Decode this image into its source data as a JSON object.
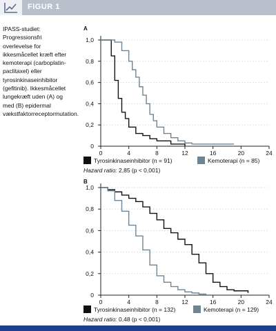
{
  "figure_label": "FIGUR 1",
  "caption": "IPASS-studiet: Progressionsfri overlevelse for ikkesmåcellet kræft efter kemoterapi (carboplatin-paclitaxel) eller tyrosinkinaseinhibitor (gefitinib). Ikkesmåcellet lungekræft uden (A) og med (B) epidermal vækstfaktorreceptormutation.",
  "colors": {
    "header": "#b9bfcb",
    "footer": "#1b3f8c",
    "series_tki": "#111111",
    "series_chemo": "#6f8492"
  },
  "icons": {
    "header_icon": "line-chart-icon"
  },
  "chart_data": [
    {
      "type": "line",
      "panel": "A",
      "xlim": [
        0,
        24
      ],
      "ylim": [
        0,
        1.0
      ],
      "xticks": [
        "0",
        "4",
        "8",
        "12",
        "16",
        "20",
        "24"
      ],
      "yticks": [
        "0",
        "0,2",
        "0,4",
        "0,6",
        "0,8",
        "1,0"
      ],
      "series": [
        {
          "name": "Tyrosinkinaseinhibitor (n = 91)",
          "color": "#111111",
          "x": [
            0,
            1,
            1.5,
            2,
            2.5,
            3,
            3.5,
            4,
            5,
            6,
            7,
            8,
            10,
            12
          ],
          "y": [
            1.0,
            1.0,
            0.85,
            0.62,
            0.45,
            0.32,
            0.26,
            0.18,
            0.12,
            0.1,
            0.07,
            0.05,
            0.02,
            0.0
          ]
        },
        {
          "name": "Kemoterapi (n = 85)",
          "color": "#6f8492",
          "x": [
            0,
            2,
            3,
            4,
            4.5,
            5,
            5.5,
            6,
            6.5,
            7,
            7.5,
            8,
            9,
            10,
            11,
            12,
            13,
            19
          ],
          "y": [
            1.0,
            0.98,
            0.9,
            0.8,
            0.72,
            0.65,
            0.56,
            0.48,
            0.4,
            0.3,
            0.24,
            0.18,
            0.12,
            0.08,
            0.05,
            0.03,
            0.02,
            0.02
          ]
        }
      ],
      "legend": [
        "Tyrosinkinaseinhibitor (n = 91)",
        "Kemoterapi (n = 85)"
      ],
      "hazard_label": "Hazard ratio:",
      "hazard_value": "2,85 (p < 0,001)"
    },
    {
      "type": "line",
      "panel": "B",
      "xlim": [
        0,
        24
      ],
      "ylim": [
        0,
        1.0
      ],
      "xticks": [
        "0",
        "4",
        "8",
        "12",
        "16",
        "20",
        "24"
      ],
      "yticks": [
        "0",
        "0,2",
        "0,4",
        "0,6",
        "0,8",
        "1,0"
      ],
      "series": [
        {
          "name": "Tyrosinkinaseinhibitor (n = 132)",
          "color": "#111111",
          "x": [
            0,
            1,
            2,
            3,
            4,
            5,
            6,
            7,
            8,
            9,
            10,
            11,
            12,
            13,
            14,
            15,
            16,
            17,
            18,
            19,
            20,
            21
          ],
          "y": [
            1.0,
            0.98,
            0.96,
            0.93,
            0.9,
            0.87,
            0.82,
            0.76,
            0.7,
            0.62,
            0.58,
            0.52,
            0.47,
            0.38,
            0.3,
            0.2,
            0.12,
            0.08,
            0.05,
            0.04,
            0.04,
            0.02
          ]
        },
        {
          "name": "Kemoterapi (n = 129)",
          "color": "#6f8492",
          "x": [
            0,
            1,
            2,
            3,
            4,
            5,
            6,
            7,
            8,
            9,
            10,
            11,
            12,
            13,
            14,
            15
          ],
          "y": [
            1.0,
            0.97,
            0.88,
            0.78,
            0.65,
            0.55,
            0.42,
            0.28,
            0.18,
            0.12,
            0.08,
            0.05,
            0.03,
            0.02,
            0.01,
            0.0
          ]
        }
      ],
      "legend": [
        "Tyrosinkinaseinhibitor (n = 132)",
        "Kemoterapi (n = 129)"
      ],
      "hazard_label": "Hazard ratio:",
      "hazard_value": "0,48 (p < 0,001)"
    }
  ]
}
